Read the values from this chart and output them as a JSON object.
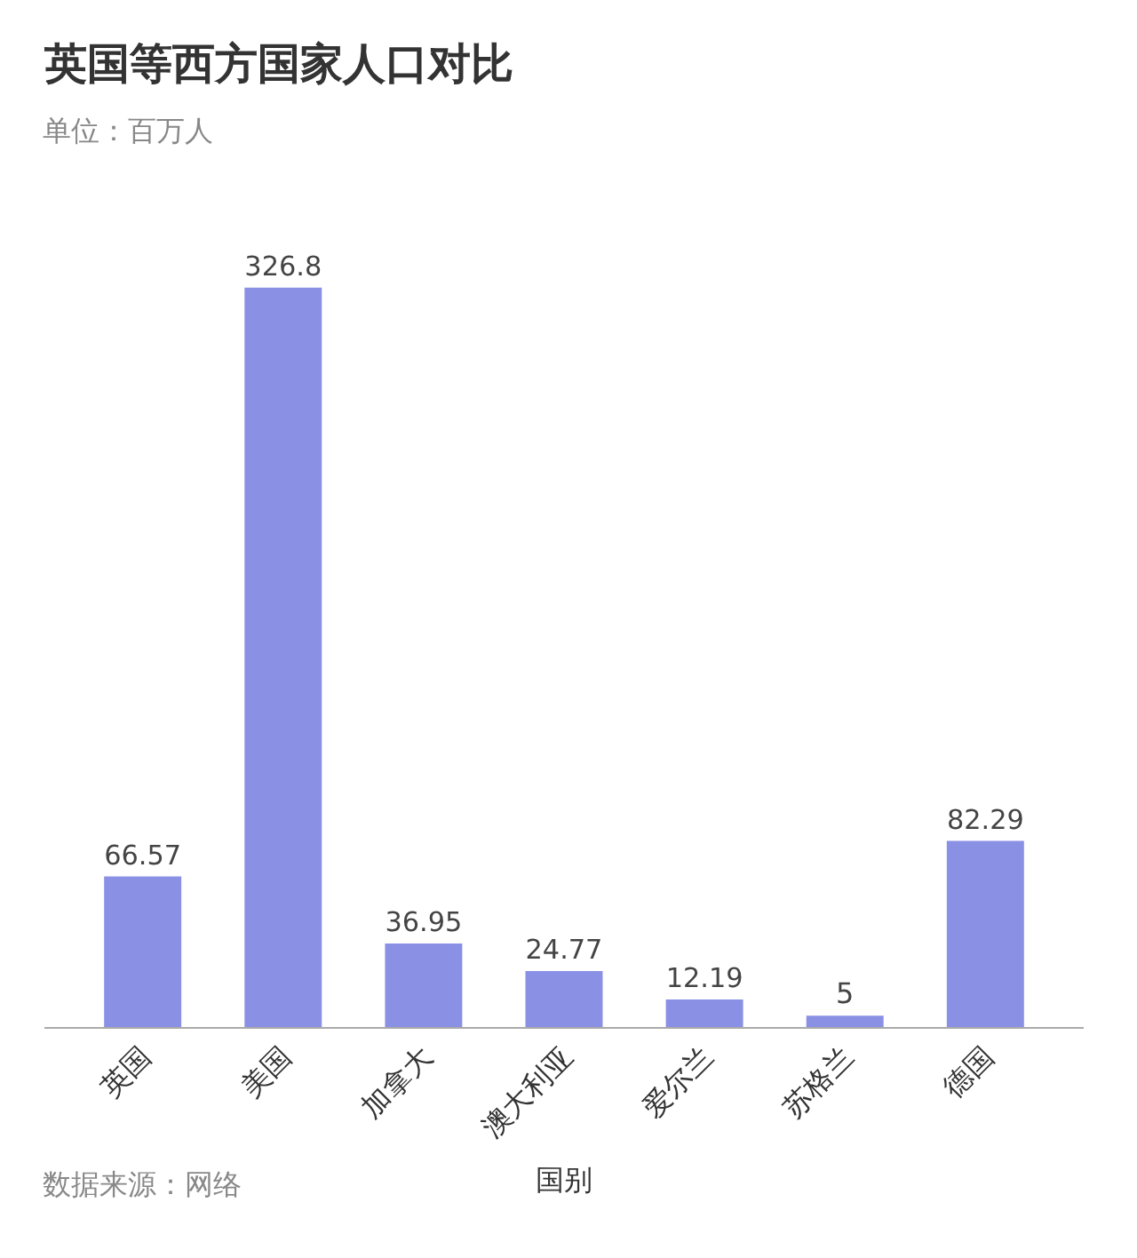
{
  "chart_data": {
    "type": "bar",
    "title": "英国等西方国家人口对比",
    "subtitle": "单位：百万人",
    "xlabel": "国别",
    "categories": [
      "英国",
      "美国",
      "加拿大",
      "澳大利亚",
      "爱尔兰",
      "苏格兰",
      "德国"
    ],
    "values": [
      66.57,
      326.8,
      36.95,
      24.77,
      12.19,
      5,
      82.29
    ],
    "color": "#8a90e4",
    "data_labels": true,
    "legend": false,
    "annotations": [
      "数据来源：网络"
    ]
  }
}
